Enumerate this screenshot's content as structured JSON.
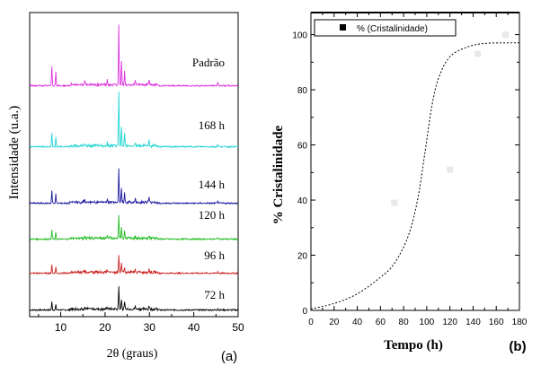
{
  "chart_data": [
    {
      "type": "line",
      "panel_label": "(a)",
      "xlabel": "2θ (graus)",
      "ylabel": "Intensidade (u.a.)",
      "xlim": [
        3,
        50
      ],
      "xticks": [
        10,
        20,
        30,
        40,
        50
      ],
      "x_tick_labels": [
        "10",
        "20",
        "30",
        "40",
        "50"
      ],
      "series": [
        {
          "label": "72 h",
          "color": "#000000",
          "peaks": [
            [
              8,
              9
            ],
            [
              8.9,
              6
            ],
            [
              15.4,
              2
            ],
            [
              20.5,
              3
            ],
            [
              23.1,
              26
            ],
            [
              23.7,
              12
            ],
            [
              24.4,
              8
            ],
            [
              26.8,
              3
            ],
            [
              29.9,
              4
            ],
            [
              45.4,
              2
            ]
          ]
        },
        {
          "label": "96 h",
          "color": "#cc2222",
          "peaks": [
            [
              8,
              10
            ],
            [
              8.9,
              7
            ],
            [
              15.4,
              2
            ],
            [
              20.5,
              3
            ],
            [
              23.1,
              20
            ],
            [
              23.7,
              9
            ],
            [
              24.4,
              6
            ],
            [
              26.8,
              3
            ],
            [
              29.9,
              4
            ],
            [
              45.4,
              2
            ]
          ]
        },
        {
          "label": "120 h",
          "color": "#22bb22",
          "peaks": [
            [
              8,
              10
            ],
            [
              8.9,
              7
            ],
            [
              15.4,
              2
            ],
            [
              20.5,
              3
            ],
            [
              23.1,
              26
            ],
            [
              23.7,
              13
            ],
            [
              24.4,
              9
            ],
            [
              26.8,
              3
            ],
            [
              29.9,
              4
            ],
            [
              45.4,
              2
            ]
          ]
        },
        {
          "label": "144 h",
          "color": "#1a1aa0",
          "peaks": [
            [
              8,
              14
            ],
            [
              8.9,
              10
            ],
            [
              15.4,
              3
            ],
            [
              20.5,
              4
            ],
            [
              23.1,
              38
            ],
            [
              23.7,
              15
            ],
            [
              24.4,
              11
            ],
            [
              26.8,
              4
            ],
            [
              29.9,
              6
            ],
            [
              45.4,
              3
            ]
          ]
        },
        {
          "label": "168 h",
          "color": "#22d4d4",
          "peaks": [
            [
              8,
              16
            ],
            [
              8.9,
              11
            ],
            [
              15.4,
              3
            ],
            [
              20.5,
              4
            ],
            [
              23.1,
              60
            ],
            [
              23.7,
              20
            ],
            [
              24.4,
              14
            ],
            [
              26.8,
              4
            ],
            [
              29.9,
              6
            ],
            [
              45.4,
              3
            ]
          ]
        },
        {
          "label": "Padrão",
          "color": "#dd33dd",
          "peaks": [
            [
              8,
              22
            ],
            [
              8.9,
              16
            ],
            [
              15.4,
              4
            ],
            [
              20.5,
              5
            ],
            [
              23.1,
              68
            ],
            [
              23.7,
              28
            ],
            [
              24.4,
              16
            ],
            [
              26.8,
              5
            ],
            [
              29.9,
              7
            ],
            [
              45.4,
              4
            ]
          ]
        }
      ]
    },
    {
      "type": "scatter",
      "panel_label": "(b)",
      "xlabel": "Tempo (h)",
      "ylabel": "% Cristalinidade",
      "xlim": [
        0,
        180
      ],
      "ylim": [
        0,
        108
      ],
      "xticks": [
        0,
        20,
        40,
        60,
        80,
        100,
        120,
        140,
        160,
        180
      ],
      "x_tick_labels": [
        "0",
        "20",
        "40",
        "60",
        "80",
        "100",
        "120",
        "140",
        "160",
        "180"
      ],
      "yticks": [
        0,
        20,
        40,
        60,
        80,
        100
      ],
      "y_tick_labels": [
        "0",
        "20",
        "40",
        "60",
        "80",
        "100"
      ],
      "legend": {
        "label": "% (Cristalinidade)",
        "position": "top-left"
      },
      "marker_color": "#e9e9e9",
      "points": [
        {
          "x": 72,
          "y": 39
        },
        {
          "x": 120,
          "y": 51
        },
        {
          "x": 144,
          "y": 93
        },
        {
          "x": 168,
          "y": 100
        }
      ],
      "fit_curve": {
        "style": "dotted",
        "points": [
          [
            0,
            0.5
          ],
          [
            20,
            2.5
          ],
          [
            40,
            6
          ],
          [
            60,
            12
          ],
          [
            72,
            17
          ],
          [
            84,
            27
          ],
          [
            92,
            40
          ],
          [
            98,
            56
          ],
          [
            104,
            73
          ],
          [
            110,
            84
          ],
          [
            120,
            92
          ],
          [
            135,
            95.5
          ],
          [
            150,
            96.8
          ],
          [
            170,
            97
          ],
          [
            180,
            97
          ]
        ]
      }
    }
  ]
}
